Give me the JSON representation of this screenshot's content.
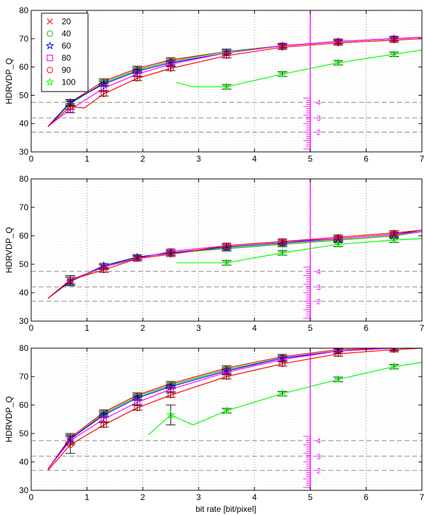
{
  "figure": {
    "xlabel": "bit rate [bit/pixel]",
    "legend": {
      "placement": "top-left",
      "entries": [
        "20",
        "40",
        "60",
        "80",
        "90",
        "100"
      ]
    }
  },
  "styles": {
    "20": {
      "color": "#ff0000",
      "marker": "x"
    },
    "40": {
      "color": "#00cc00",
      "marker": "circle"
    },
    "60": {
      "color": "#0000ff",
      "marker": "star"
    },
    "80": {
      "color": "#ff00ff",
      "marker": "square"
    },
    "90": {
      "color": "#ff0000",
      "marker": "circle"
    },
    "100": {
      "color": "#00ff00",
      "marker": "star"
    }
  },
  "chart_data": [
    {
      "type": "line",
      "ylabel": "HDRVDP_Q",
      "xlim": [
        0,
        7
      ],
      "ylim": [
        30,
        80
      ],
      "xticks": [
        0,
        1,
        2,
        3,
        4,
        5,
        6,
        7
      ],
      "yticks": [
        30,
        40,
        50,
        60,
        70,
        80
      ],
      "grid": "dotted vertical at integer x, dotted horizontal minor",
      "reference_lines": [
        {
          "label": "4",
          "y": 47.5
        },
        {
          "label": "3",
          "y": 42
        },
        {
          "label": "2",
          "y": 37
        }
      ],
      "vertical_marker": {
        "x": 5,
        "color": "#ff00ff"
      },
      "series": [
        {
          "name": "20",
          "x": [
            0.3,
            0.7,
            1.3,
            1.9,
            2.5,
            3.5,
            4.5,
            5.5,
            6.5,
            7.0
          ],
          "y": [
            39,
            47.5,
            55,
            59.5,
            62.5,
            65.5,
            67.5,
            69,
            70,
            70.5
          ],
          "err": [
            0,
            1,
            0.8,
            0.8,
            0.8,
            0.8,
            0.8,
            0.8,
            0.8,
            0
          ]
        },
        {
          "name": "40",
          "x": [
            0.3,
            0.7,
            1.3,
            1.9,
            2.5,
            3.5,
            4.5,
            5.5,
            6.5,
            7.0
          ],
          "y": [
            39,
            47,
            54.5,
            59,
            62,
            65.5,
            67.5,
            69,
            70,
            70.5
          ],
          "err": [
            0,
            1,
            0.8,
            0.8,
            0.8,
            0.8,
            0.8,
            0.8,
            0.8,
            0
          ]
        },
        {
          "name": "60",
          "x": [
            0.3,
            0.7,
            1.3,
            1.9,
            2.5,
            3.5,
            4.5,
            5.5,
            6.5,
            7.0
          ],
          "y": [
            39,
            47.5,
            54,
            58.5,
            61.5,
            65,
            67.5,
            69,
            70,
            70.5
          ],
          "err": [
            0,
            1,
            0.8,
            0.8,
            0.8,
            0.8,
            0.8,
            0.8,
            0.8,
            0
          ]
        },
        {
          "name": "80",
          "x": [
            0.3,
            0.7,
            1.3,
            1.9,
            2.5,
            3.5,
            4.5,
            5.5,
            6.5,
            7.0
          ],
          "y": [
            39,
            45,
            52.5,
            57.5,
            61,
            65,
            67.5,
            69,
            70,
            70.5
          ],
          "err": [
            0,
            1.2,
            0.8,
            0.8,
            0.8,
            0.8,
            0.8,
            0.8,
            0.8,
            0
          ]
        },
        {
          "name": "90",
          "x": [
            0.3,
            0.7,
            0.95,
            1.3,
            1.9,
            2.5,
            3.5,
            4.5,
            5.5,
            6.5,
            7.0
          ],
          "y": [
            39,
            46,
            45.5,
            50.5,
            56,
            59.5,
            64,
            67,
            68.5,
            69.5,
            70
          ],
          "err": [
            0,
            1,
            0,
            0.8,
            0.8,
            0.8,
            0.8,
            0.8,
            0.8,
            0.8,
            0
          ]
        },
        {
          "name": "100",
          "x": [
            2.6,
            2.9,
            3.5,
            4.5,
            5.5,
            6.5,
            7.0
          ],
          "y": [
            54.5,
            53,
            53,
            57.5,
            61.5,
            64.5,
            66
          ],
          "err": [
            0,
            0,
            0.8,
            0.8,
            0.8,
            0.8,
            0
          ]
        }
      ]
    },
    {
      "type": "line",
      "ylabel": "HDRVDP_Q",
      "xlim": [
        0,
        7
      ],
      "ylim": [
        30,
        80
      ],
      "xticks": [
        0,
        1,
        2,
        3,
        4,
        5,
        6,
        7
      ],
      "yticks": [
        30,
        40,
        50,
        60,
        70,
        80
      ],
      "grid": "dotted vertical at integer x, dotted horizontal minor",
      "reference_lines": [
        {
          "label": "4",
          "y": 47.5
        },
        {
          "label": "3",
          "y": 42
        },
        {
          "label": "2",
          "y": 37
        }
      ],
      "vertical_marker": {
        "x": 5,
        "color": "#ff00ff"
      },
      "series": [
        {
          "name": "20",
          "x": [
            0.3,
            0.7,
            1.3,
            1.9,
            2.5,
            3.5,
            4.5,
            5.5,
            6.5,
            7.0
          ],
          "y": [
            38,
            44,
            49,
            52.5,
            54,
            55.5,
            57,
            58.5,
            60,
            61.5
          ],
          "err": [
            0,
            1.5,
            0.8,
            0.8,
            0.8,
            0.8,
            0.8,
            0.8,
            0.8,
            0
          ]
        },
        {
          "name": "40",
          "x": [
            0.3,
            0.7,
            1.3,
            1.9,
            2.5,
            3.5,
            4.5,
            5.5,
            6.5,
            7.0
          ],
          "y": [
            38,
            44,
            49,
            52.5,
            54,
            55.5,
            57,
            58.5,
            60,
            61.5
          ],
          "err": [
            0,
            1.5,
            0.8,
            0.8,
            0.8,
            0.8,
            0.8,
            0.8,
            0.8,
            0
          ]
        },
        {
          "name": "60",
          "x": [
            0.3,
            0.7,
            1.3,
            1.9,
            2.5,
            3.5,
            4.5,
            5.5,
            6.5,
            7.0
          ],
          "y": [
            38,
            44,
            49.5,
            52.5,
            54,
            56,
            57.5,
            59,
            60.5,
            62
          ],
          "err": [
            0,
            1.5,
            0.8,
            0.8,
            0.8,
            0.8,
            0.8,
            0.8,
            0.8,
            0
          ]
        },
        {
          "name": "80",
          "x": [
            0.3,
            0.7,
            1.3,
            1.9,
            2.5,
            3.5,
            4.5,
            5.5,
            6.5,
            7.0
          ],
          "y": [
            38,
            44.5,
            49,
            52,
            54.5,
            56.5,
            58,
            59,
            60.5,
            61.5
          ],
          "err": [
            0,
            1.5,
            0.8,
            0.8,
            0.8,
            0.8,
            0.8,
            0.8,
            0.8,
            0
          ]
        },
        {
          "name": "90",
          "x": [
            0.3,
            0.7,
            1.3,
            1.9,
            2.5,
            3.5,
            4.5,
            5.5,
            6.5,
            7.0
          ],
          "y": [
            38,
            44.5,
            48,
            52,
            53.5,
            56.5,
            58,
            59.5,
            61,
            62
          ],
          "err": [
            0,
            1.5,
            0.8,
            0.8,
            0.8,
            0.8,
            0.8,
            0.8,
            0.8,
            0
          ]
        },
        {
          "name": "100",
          "x": [
            2.6,
            3.5,
            4.5,
            5.5,
            6.5,
            7.0
          ],
          "y": [
            50.5,
            50.5,
            54,
            57,
            58.5,
            59
          ],
          "err": [
            0,
            0.8,
            0.8,
            0.8,
            0.8,
            0
          ]
        }
      ]
    },
    {
      "type": "line",
      "ylabel": "HDRVDP_Q",
      "xlim": [
        0,
        7
      ],
      "ylim": [
        30,
        80
      ],
      "xticks": [
        0,
        1,
        2,
        3,
        4,
        5,
        6,
        7
      ],
      "yticks": [
        30,
        40,
        50,
        60,
        70,
        80
      ],
      "grid": "dotted vertical at integer x, dotted horizontal minor",
      "reference_lines": [
        {
          "label": "4",
          "y": 47.5
        },
        {
          "label": "3",
          "y": 42
        },
        {
          "label": "2",
          "y": 37
        }
      ],
      "vertical_marker": {
        "x": 5,
        "color": "#ff00ff"
      },
      "series": [
        {
          "name": "20",
          "x": [
            0.3,
            0.7,
            1.3,
            1.9,
            2.5,
            3.5,
            4.5,
            5.5,
            6.5,
            7.0
          ],
          "y": [
            37.5,
            48.5,
            57.5,
            63.5,
            67.5,
            73,
            77,
            79.5,
            80,
            80.5
          ],
          "err": [
            0,
            1.5,
            0.8,
            0.8,
            0.8,
            0.8,
            0.8,
            0.8,
            0.8,
            0
          ]
        },
        {
          "name": "40",
          "x": [
            0.3,
            0.7,
            1.3,
            1.9,
            2.5,
            3.5,
            4.5,
            5.5,
            6.5,
            7.0
          ],
          "y": [
            37.5,
            48,
            57,
            63,
            67,
            72.5,
            76.5,
            79,
            80,
            80.5
          ],
          "err": [
            0,
            1.5,
            0.8,
            0.8,
            0.8,
            0.8,
            0.8,
            0.8,
            0.8,
            0
          ]
        },
        {
          "name": "60",
          "x": [
            0.3,
            0.7,
            1.3,
            1.9,
            2.5,
            3.5,
            4.5,
            5.5,
            6.5,
            7.0
          ],
          "y": [
            37.5,
            48,
            56.5,
            62.5,
            66.5,
            72,
            76.5,
            79,
            80,
            80.5
          ],
          "err": [
            0,
            1.5,
            0.8,
            0.8,
            0.8,
            0.8,
            0.8,
            0.8,
            0.8,
            0
          ]
        },
        {
          "name": "80",
          "x": [
            0.3,
            0.7,
            1.3,
            1.9,
            2.5,
            3.5,
            4.5,
            5.5,
            6.5,
            7.0
          ],
          "y": [
            37.5,
            47.5,
            55,
            61,
            65.5,
            71.5,
            76,
            79,
            80,
            80.5
          ],
          "err": [
            0,
            1.5,
            0.8,
            0.8,
            0.8,
            0.8,
            0.8,
            0.8,
            0.8,
            0
          ]
        },
        {
          "name": "90",
          "x": [
            0.3,
            0.7,
            1.3,
            1.9,
            2.5,
            3.5,
            4.5,
            5.5,
            6.5,
            7.0
          ],
          "y": [
            37,
            46,
            53,
            59,
            63.5,
            70,
            74.5,
            78,
            79.5,
            80
          ],
          "err": [
            0,
            3,
            0.8,
            0.8,
            0.8,
            0.8,
            0.8,
            0.8,
            0.8,
            0
          ]
        },
        {
          "name": "100",
          "x": [
            2.1,
            2.5,
            2.9,
            3.5,
            4.5,
            5.5,
            6.5,
            7.0
          ],
          "y": [
            49.5,
            56.5,
            53,
            58,
            64,
            69,
            73.5,
            75
          ],
          "err": [
            0,
            3.5,
            0,
            0.8,
            0.8,
            0.8,
            0.8,
            0
          ]
        }
      ]
    }
  ]
}
